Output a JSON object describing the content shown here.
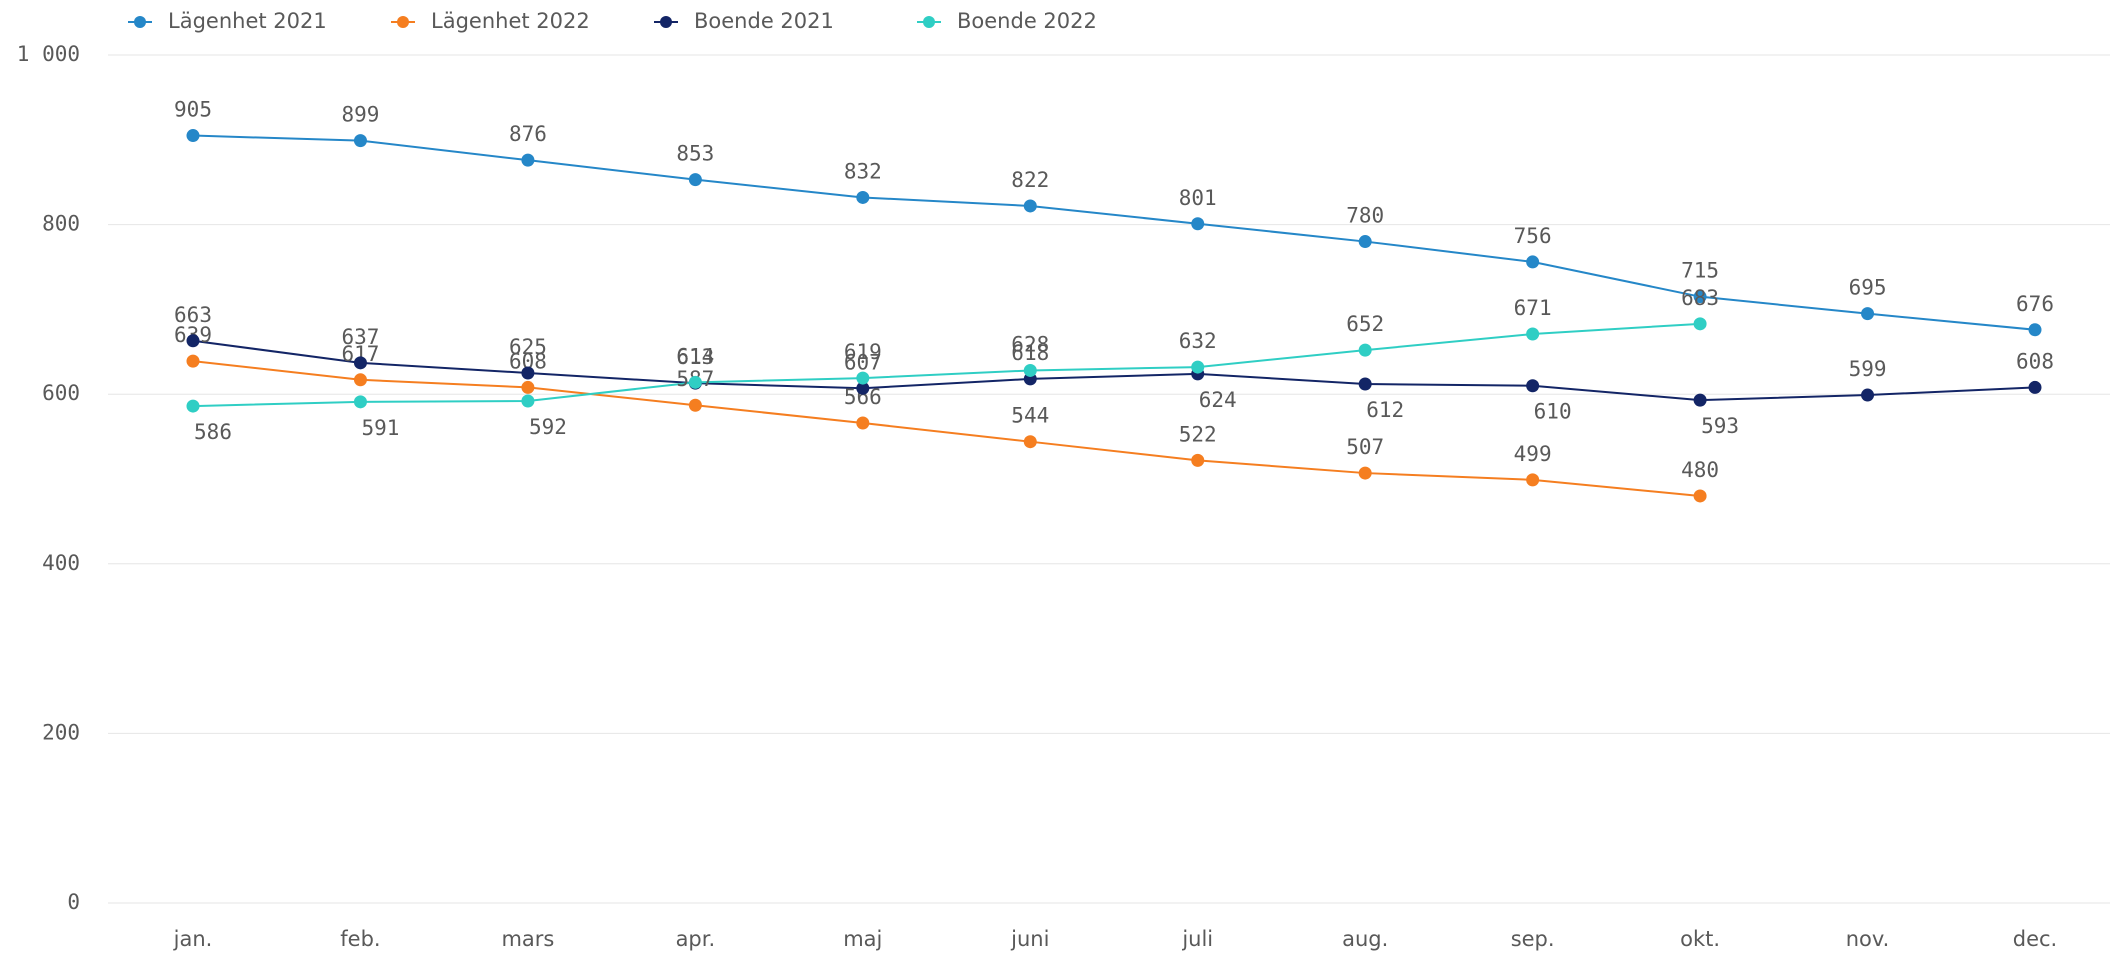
{
  "chart_data": {
    "type": "line",
    "categories": [
      "jan.",
      "feb.",
      "mars",
      "apr.",
      "maj",
      "juni",
      "juli",
      "aug.",
      "sep.",
      "okt.",
      "nov.",
      "dec."
    ],
    "series": [
      {
        "name": "Lägenhet 2021",
        "color": "#2587c8",
        "values": [
          905,
          899,
          876,
          853,
          832,
          822,
          801,
          780,
          756,
          715,
          695,
          676
        ]
      },
      {
        "name": "Lägenhet 2022",
        "color": "#f57e20",
        "values": [
          639,
          617,
          608,
          587,
          566,
          544,
          522,
          507,
          499,
          480,
          null,
          null
        ]
      },
      {
        "name": "Boende 2021",
        "color": "#132566",
        "values": [
          663,
          637,
          625,
          613,
          607,
          618,
          624,
          612,
          610,
          593,
          599,
          608
        ]
      },
      {
        "name": "Boende 2022",
        "color": "#2fcec4",
        "values": [
          586,
          591,
          592,
          614,
          619,
          628,
          632,
          652,
          671,
          683,
          null,
          null
        ]
      }
    ],
    "ylim": [
      0,
      1000
    ],
    "yticks": [
      0,
      200,
      400,
      600,
      800,
      {
        "value": 1000,
        "label": "1 000"
      }
    ],
    "grid": true,
    "legend": "top-left"
  }
}
